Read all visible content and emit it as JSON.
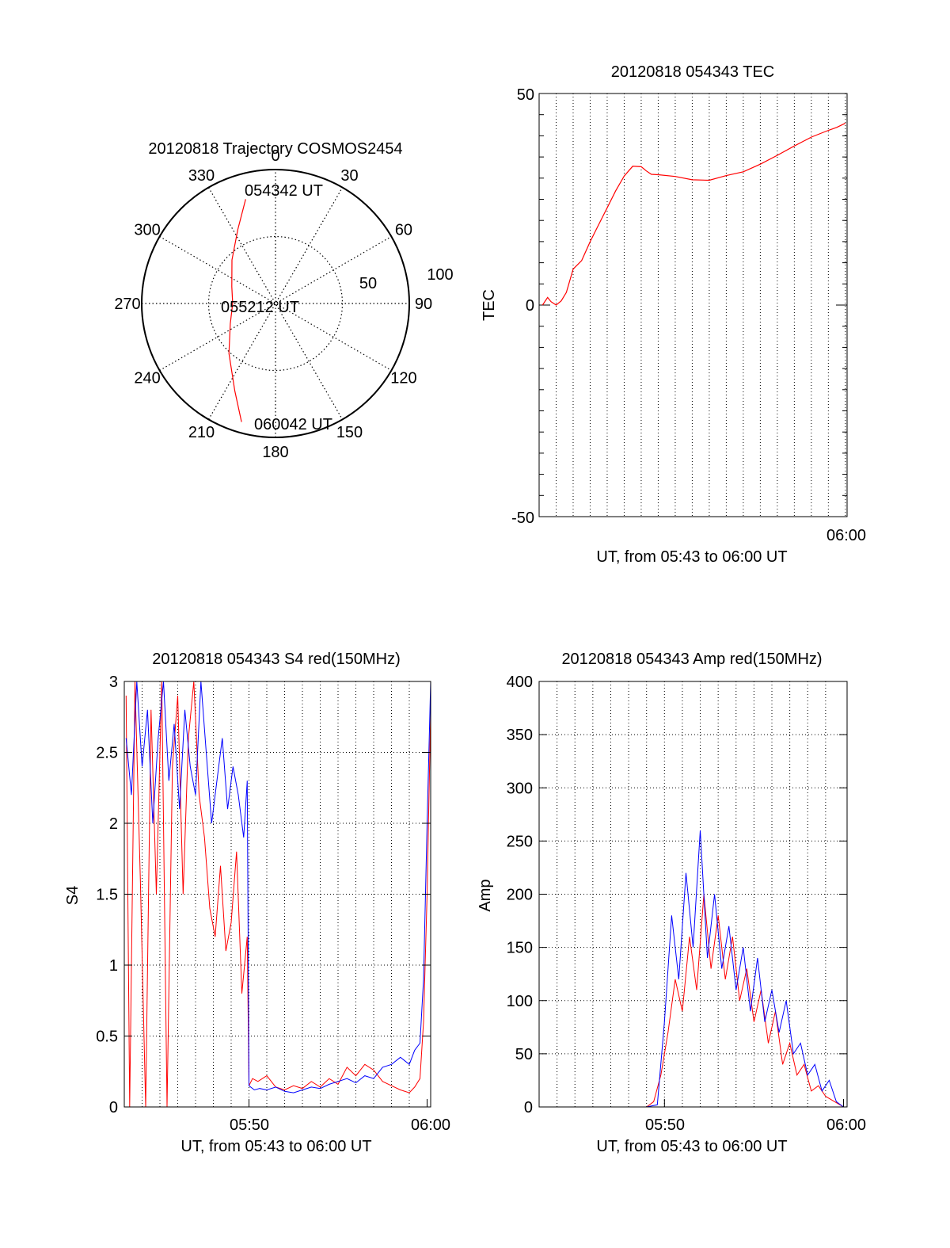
{
  "chart_data": [
    {
      "id": "trajectory",
      "type": "polar",
      "title": "20120818 Trajectory COSMOS2454",
      "azimuth_labels": [
        "0",
        "30",
        "60",
        "90",
        "120",
        "150",
        "180",
        "210",
        "240",
        "270",
        "300",
        "330"
      ],
      "elevation_ring_labels": [
        "50",
        "100"
      ],
      "grid": true,
      "series": [
        {
          "color": "#ff0000",
          "points": [
            {
              "az": 344,
              "r": 81
            },
            {
              "az": 333,
              "r": 62
            },
            {
              "az": 315,
              "r": 46
            },
            {
              "az": 291,
              "r": 35
            },
            {
              "az": 270,
              "r": 32
            },
            {
              "az": 246,
              "r": 37
            },
            {
              "az": 223,
              "r": 51
            },
            {
              "az": 205,
              "r": 72
            },
            {
              "az": 196,
              "r": 92
            }
          ]
        }
      ],
      "point_labels": [
        "054342 UT",
        "055212 UT",
        "060042 UT"
      ]
    },
    {
      "id": "tec",
      "type": "line",
      "title": "20120818 054343 TEC",
      "xlabel": "UT, from 05:43 to 06:00 UT",
      "ylabel": "TEC",
      "ylim": [
        -50,
        50
      ],
      "yticks": [
        "-50",
        "0",
        "50"
      ],
      "xlim_minutes_after_0543": [
        0,
        18.1
      ],
      "xtick_labels": [
        "06:00"
      ],
      "grid": "vertical",
      "series": [
        {
          "color": "#ff0000",
          "x_minutes": [
            0.2,
            0.5,
            0.7,
            1.0,
            1.3,
            1.6,
            2.0,
            2.5,
            3.0,
            3.5,
            4.0,
            4.5,
            5.0,
            5.5,
            6.0,
            6.3,
            6.6,
            7.0,
            8.0,
            9.0,
            10.0,
            11.0,
            12.0,
            13.0,
            14.0,
            15.0,
            16.0,
            17.0,
            17.5,
            18.0
          ],
          "values": [
            0,
            1.8,
            0.8,
            0,
            1.0,
            3.0,
            8.5,
            10.5,
            15.0,
            19.0,
            23.0,
            27.0,
            30.5,
            32.8,
            32.7,
            31.7,
            30.9,
            30.8,
            30.4,
            29.6,
            29.5,
            30.6,
            31.5,
            33.3,
            35.4,
            37.6,
            39.7,
            41.3,
            42.0,
            43.0
          ]
        }
      ]
    },
    {
      "id": "s4",
      "type": "line",
      "title": "20120818 054343 S4 red(150MHz)",
      "xlabel": "UT, from 05:43 to 06:00 UT",
      "ylabel": "S4",
      "ylim": [
        0,
        3
      ],
      "yticks": [
        "0",
        "0.5",
        "1",
        "1.5",
        "2",
        "2.5",
        "3"
      ],
      "xlim_minutes_after_0543": [
        0,
        17.2
      ],
      "xticks_minutes": [
        7,
        17
      ],
      "xtick_labels": [
        "05:50",
        "06:00"
      ],
      "grid": true,
      "series": [
        {
          "color": "#ff0000",
          "x_minutes": [
            0.1,
            0.3,
            0.6,
            0.9,
            1.2,
            1.5,
            1.8,
            2.1,
            2.4,
            2.7,
            3.0,
            3.3,
            3.6,
            3.9,
            4.2,
            4.5,
            4.8,
            5.1,
            5.4,
            5.7,
            6.0,
            6.3,
            6.6,
            6.9,
            7.0,
            7.2,
            7.5,
            8.0,
            8.5,
            9.0,
            9.5,
            10.0,
            10.5,
            11.0,
            11.5,
            12.0,
            12.5,
            13.0,
            13.5,
            14.0,
            14.5,
            15.0,
            15.5,
            16.0,
            16.3,
            16.6,
            16.8,
            17.0,
            17.2
          ],
          "values": [
            2.9,
            0,
            3.0,
            1.6,
            0,
            2.8,
            1.5,
            3.0,
            0,
            2.4,
            2.9,
            1.5,
            2.6,
            3.0,
            2.2,
            1.9,
            1.4,
            1.2,
            1.7,
            1.1,
            1.3,
            1.8,
            0.8,
            1.2,
            0.15,
            0.2,
            0.18,
            0.22,
            0.14,
            0.12,
            0.15,
            0.13,
            0.18,
            0.14,
            0.2,
            0.16,
            0.28,
            0.22,
            0.3,
            0.26,
            0.18,
            0.15,
            0.12,
            0.1,
            0.14,
            0.2,
            0.6,
            1.5,
            2.8
          ]
        },
        {
          "color": "#0000ff",
          "x_minutes": [
            0.1,
            0.4,
            0.7,
            1.0,
            1.3,
            1.6,
            1.9,
            2.2,
            2.5,
            2.8,
            3.1,
            3.4,
            3.7,
            4.0,
            4.3,
            4.6,
            4.9,
            5.2,
            5.5,
            5.8,
            6.1,
            6.4,
            6.7,
            6.9,
            7.0,
            7.3,
            7.6,
            8.0,
            8.5,
            9.0,
            9.5,
            10.0,
            10.5,
            11.0,
            11.5,
            12.0,
            12.5,
            13.0,
            13.5,
            14.0,
            14.5,
            15.0,
            15.5,
            16.0,
            16.3,
            16.6,
            16.8,
            17.0,
            17.2
          ],
          "values": [
            2.6,
            2.2,
            3.0,
            2.4,
            2.8,
            2.0,
            2.6,
            3.0,
            2.3,
            2.7,
            2.1,
            2.8,
            2.4,
            2.2,
            3.0,
            2.5,
            2.0,
            2.3,
            2.6,
            2.1,
            2.4,
            2.2,
            1.9,
            2.3,
            0.15,
            0.12,
            0.13,
            0.12,
            0.14,
            0.11,
            0.1,
            0.12,
            0.14,
            0.13,
            0.16,
            0.18,
            0.2,
            0.17,
            0.22,
            0.2,
            0.28,
            0.3,
            0.35,
            0.3,
            0.4,
            0.45,
            0.9,
            2.0,
            3.0
          ]
        }
      ]
    },
    {
      "id": "amp",
      "type": "line",
      "title": "20120818 054343 Amp red(150MHz)",
      "xlabel": "UT, from 05:43 to 06:00 UT",
      "ylabel": "Amp",
      "ylim": [
        0,
        400
      ],
      "yticks": [
        "0",
        "50",
        "100",
        "150",
        "200",
        "250",
        "300",
        "350",
        "400"
      ],
      "xlim_minutes_after_0543": [
        0,
        17.2
      ],
      "xticks_minutes": [
        7,
        17
      ],
      "xtick_labels": [
        "05:50",
        "06:00"
      ],
      "grid": true,
      "series": [
        {
          "color": "#ff0000",
          "x_minutes": [
            0.5,
            2.0,
            4.0,
            6.0,
            6.4,
            6.8,
            7.2,
            7.6,
            8.0,
            8.4,
            8.8,
            9.2,
            9.6,
            10.0,
            10.4,
            10.8,
            11.2,
            11.6,
            12.0,
            12.4,
            12.8,
            13.2,
            13.6,
            14.0,
            14.4,
            14.8,
            15.2,
            15.6,
            16.0,
            16.5,
            17.0
          ],
          "values": [
            0,
            0,
            0,
            0,
            5,
            30,
            70,
            120,
            90,
            160,
            110,
            200,
            130,
            180,
            120,
            160,
            100,
            130,
            80,
            110,
            60,
            90,
            40,
            60,
            30,
            40,
            15,
            20,
            10,
            5,
            0
          ]
        },
        {
          "color": "#0000ff",
          "x_minutes": [
            0.5,
            2.0,
            4.0,
            6.0,
            6.6,
            7.0,
            7.4,
            7.8,
            8.2,
            8.6,
            9.0,
            9.4,
            9.8,
            10.2,
            10.6,
            11.0,
            11.4,
            11.8,
            12.2,
            12.6,
            13.0,
            13.4,
            13.8,
            14.2,
            14.6,
            15.0,
            15.4,
            15.8,
            16.2,
            16.6,
            17.0
          ],
          "values": [
            0,
            0,
            0,
            0,
            2,
            80,
            180,
            120,
            220,
            150,
            260,
            140,
            200,
            130,
            170,
            110,
            150,
            90,
            140,
            80,
            110,
            70,
            100,
            50,
            60,
            30,
            40,
            15,
            25,
            5,
            0
          ]
        }
      ]
    }
  ]
}
